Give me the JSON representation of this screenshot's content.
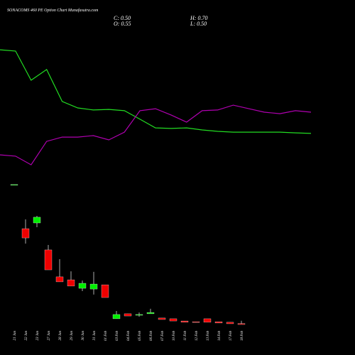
{
  "chart_data": {
    "type": "candlestick",
    "title": "SONACOMS 460 PE Option Chart Munafasutra.com",
    "header": [
      "C: 0.50",
      "H: 0.70",
      "O: 0.55",
      "L: 0.50"
    ],
    "categories": [
      "21 Jan",
      "22 Jan",
      "23 Jan",
      "27 Jan",
      "28 Jan",
      "29 Jan",
      "30 Jan",
      "31 Jan",
      "01 Feb",
      "03 Feb",
      "04 Feb",
      "05 Feb",
      "06 Feb",
      "07 Feb",
      "10 Feb",
      "11 Feb",
      "12 Feb",
      "13 Feb",
      "14 Feb",
      "17 Feb",
      "18 Feb"
    ],
    "open": [
      8.08,
      5.69,
      6.0,
      4.54,
      3.08,
      2.92,
      2.46,
      2.42,
      2.65,
      0.81,
      1.08,
      1.0,
      1.08,
      0.85,
      0.81,
      0.69,
      0.65,
      0.81,
      0.65,
      0.62,
      0.55
    ],
    "high": [
      8.08,
      6.19,
      6.38,
      4.81,
      4.04,
      3.38,
      2.88,
      3.35,
      2.65,
      1.23,
      1.08,
      1.15,
      1.35,
      0.85,
      0.81,
      0.69,
      0.65,
      0.81,
      0.65,
      0.62,
      0.7
    ],
    "low": [
      8.08,
      4.88,
      5.77,
      3.46,
      2.81,
      2.58,
      2.31,
      2.12,
      1.96,
      0.81,
      0.96,
      0.92,
      1.08,
      0.77,
      0.69,
      0.62,
      0.62,
      0.62,
      0.58,
      0.54,
      0.5
    ],
    "close": [
      8.08,
      5.19,
      6.31,
      3.46,
      2.81,
      2.58,
      2.73,
      2.69,
      1.96,
      1.04,
      0.96,
      1.04,
      1.15,
      0.77,
      0.69,
      0.62,
      0.62,
      0.62,
      0.58,
      0.54,
      0.5
    ],
    "up_color": "#00ee00",
    "down_color": "#ee0000",
    "series": [
      {
        "color": "#22dd22",
        "values": [
          15.38,
          15.31,
          13.73,
          14.31,
          12.58,
          12.23,
          12.12,
          12.15,
          12.08,
          11.62,
          11.15,
          11.12,
          11.15,
          11.04,
          10.96,
          10.92,
          10.92,
          10.92,
          10.92,
          10.88,
          10.85
        ]
      },
      {
        "color": "#b000b0",
        "values": [
          9.69,
          9.62,
          9.15,
          10.42,
          10.65,
          10.65,
          10.73,
          10.5,
          10.92,
          12.08,
          12.19,
          11.85,
          11.46,
          12.08,
          12.12,
          12.38,
          12.19,
          12.0,
          11.92,
          12.08,
          12.0
        ]
      }
    ],
    "ylim": [
      0,
      18
    ]
  }
}
